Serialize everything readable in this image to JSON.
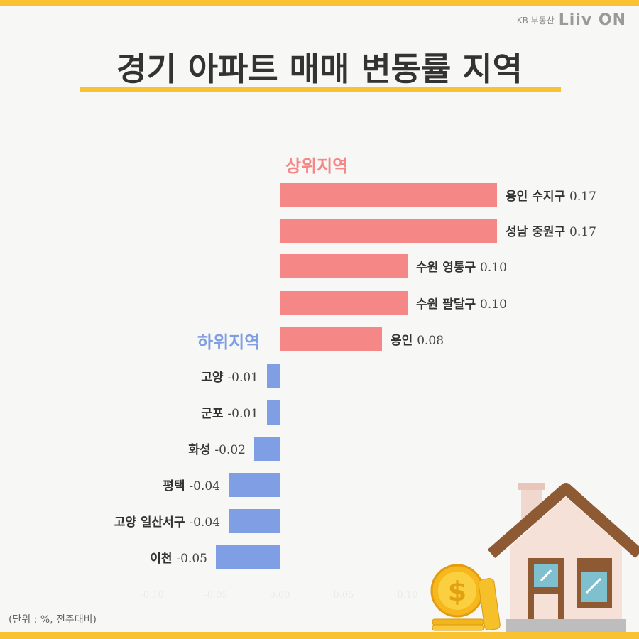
{
  "brand": {
    "company": "KB 부동산",
    "app": "Liiv ON"
  },
  "title": "경기 아파트 매매 변동률 지역",
  "unit_note": "(단위 : %, 전주대비)",
  "chart_data": {
    "type": "bar",
    "orientation": "horizontal",
    "title": "경기 아파트 매매 변동률 지역",
    "xlim": [
      -0.1,
      0.1
    ],
    "x_ticks": [
      "-0.10",
      "-0.05",
      "0.00",
      "0.05",
      "0.10"
    ],
    "groups": [
      {
        "name": "상위지역",
        "color": "#f58787"
      },
      {
        "name": "하위지역",
        "color": "#7f9ee3"
      }
    ],
    "categories": [
      "용인 수지구",
      "성남 중원구",
      "수원 영통구",
      "수원 팔달구",
      "용인",
      "고양",
      "군포",
      "화성",
      "평택",
      "고양 일산서구",
      "이천"
    ],
    "values": [
      0.17,
      0.17,
      0.1,
      0.1,
      0.08,
      -0.01,
      -0.01,
      -0.02,
      -0.04,
      -0.04,
      -0.05
    ],
    "value_labels": [
      "0.17",
      "0.17",
      "0.10",
      "0.10",
      "0.08",
      "-0.01",
      "-0.01",
      "-0.02",
      "-0.04",
      "-0.04",
      "-0.05"
    ],
    "bar_colors": [
      "#f58787",
      "#f58787",
      "#f58787",
      "#f58787",
      "#f58787",
      "#7f9ee3",
      "#7f9ee3",
      "#7f9ee3",
      "#7f9ee3",
      "#7f9ee3",
      "#7f9ee3"
    ],
    "grid": false
  }
}
